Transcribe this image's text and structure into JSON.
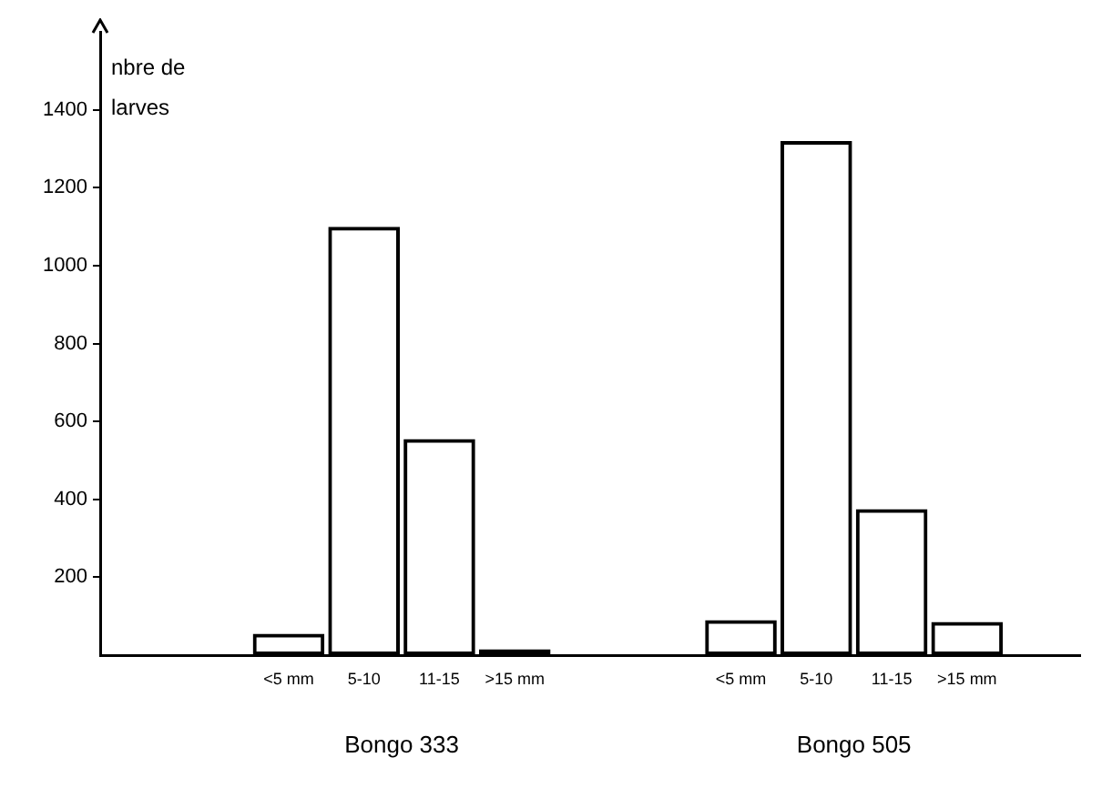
{
  "chart_data": {
    "type": "bar",
    "ylabel": "nbre de larves",
    "categories": [
      null,
      null,
      "<5 mm",
      "5-10",
      "11-15",
      ">15 mm",
      null,
      null,
      "<5 mm",
      "5-10",
      "11-15",
      ">15 mm",
      null
    ],
    "values": [
      null,
      null,
      55,
      1100,
      555,
      15,
      null,
      null,
      90,
      1320,
      375,
      85,
      null
    ],
    "color": "#000000",
    "ylim": [
      0,
      1600
    ],
    "yticks": [
      200,
      400,
      600,
      800,
      1000,
      1200,
      1400
    ],
    "grid": false,
    "legend": false,
    "annotations": [
      "Bongo 333",
      "Bongo 505"
    ]
  }
}
